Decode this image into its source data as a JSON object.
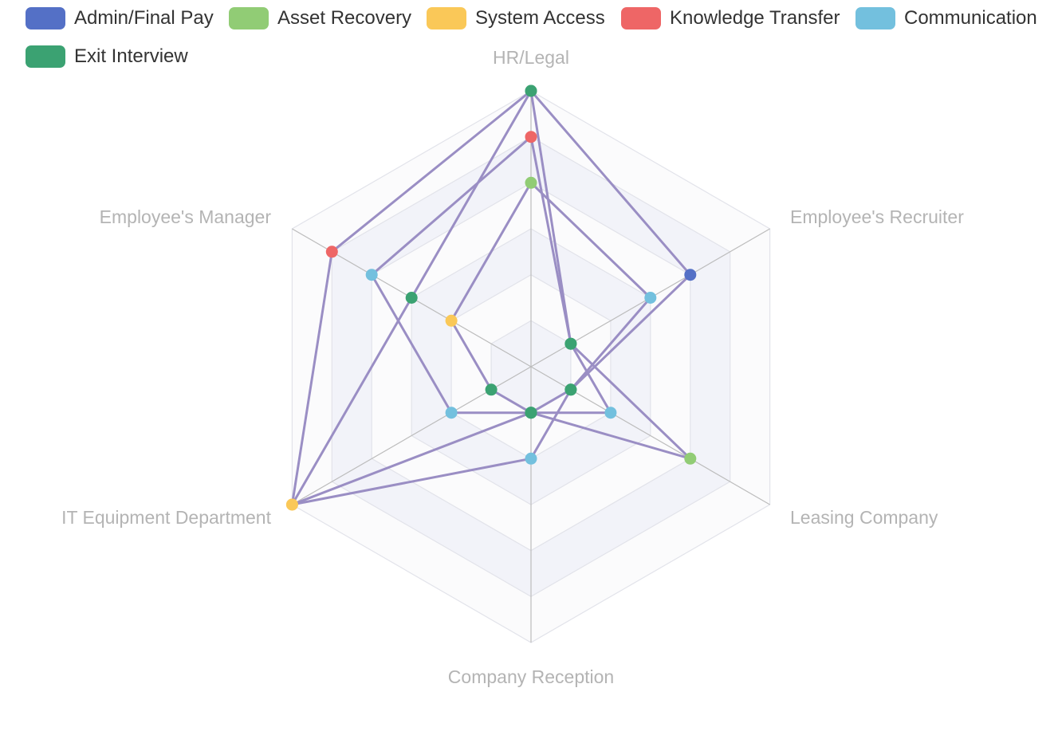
{
  "chart_data": {
    "type": "radar",
    "indicators": [
      {
        "name": "HR/Legal",
        "max": 6
      },
      {
        "name": "Employee's Recruiter",
        "max": 6
      },
      {
        "name": "Leasing Company",
        "max": 6
      },
      {
        "name": "Company Reception",
        "max": 6
      },
      {
        "name": "IT Equipment Department",
        "max": 6
      },
      {
        "name": "Employee's Manager",
        "max": 6
      }
    ],
    "split_number": 6,
    "line_color": "#9a8ec4",
    "legend": [
      {
        "name": "Admin/Final Pay",
        "color": "#5470c6"
      },
      {
        "name": "Asset Recovery",
        "color": "#91cc75"
      },
      {
        "name": "System Access",
        "color": "#fac858"
      },
      {
        "name": "Knowledge Transfer",
        "color": "#ee6666"
      },
      {
        "name": "Communication",
        "color": "#73c0de"
      },
      {
        "name": "Exit Interview",
        "color": "#3ba272"
      }
    ],
    "series": [
      {
        "values": [
          6,
          1,
          4,
          1,
          6,
          5
        ],
        "point_colors": [
          "#3ba272",
          "#3ba272",
          "#91cc75",
          "#3ba272",
          "#fac858",
          "#ee6666"
        ]
      },
      {
        "values": [
          6,
          4,
          1,
          2,
          6,
          3
        ],
        "point_colors": [
          "#3ba272",
          "#5470c6",
          "#3ba272",
          "#73c0de",
          "#fac858",
          "#3ba272"
        ]
      },
      {
        "values": [
          5,
          1,
          2,
          1,
          2,
          4
        ],
        "point_colors": [
          "#ee6666",
          "#3ba272",
          "#73c0de",
          "#3ba272",
          "#73c0de",
          "#73c0de"
        ]
      },
      {
        "values": [
          4,
          3,
          1,
          1,
          1,
          2
        ],
        "point_colors": [
          "#91cc75",
          "#73c0de",
          "#3ba272",
          "#3ba272",
          "#3ba272",
          "#fac858"
        ]
      }
    ]
  }
}
